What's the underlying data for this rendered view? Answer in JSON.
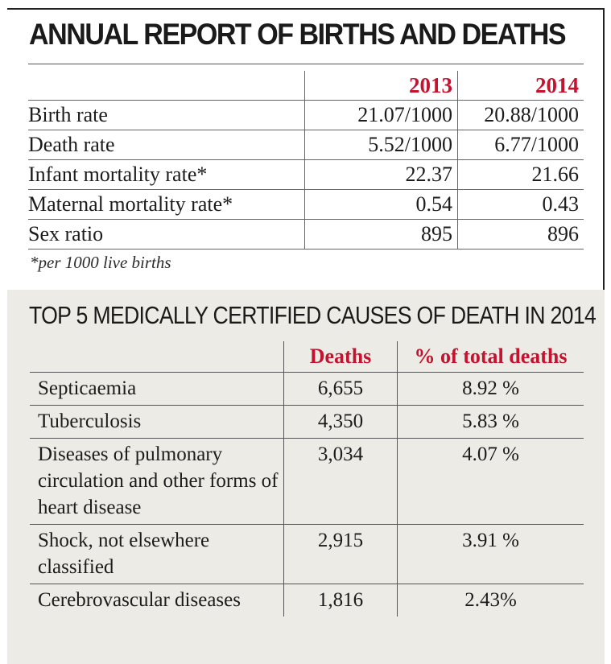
{
  "section1": {
    "title": "ANNUAL REPORT OF BIRTHS AND DEATHS",
    "columns": [
      "2013",
      "2014"
    ],
    "rows": [
      {
        "label": "Birth rate",
        "v2013": "21.07/1000",
        "v2014": "20.88/1000"
      },
      {
        "label": "Death rate",
        "v2013": "5.52/1000",
        "v2014": "6.77/1000"
      },
      {
        "label": "Infant mortality rate*",
        "v2013": "22.37",
        "v2014": "21.66"
      },
      {
        "label": "Maternal mortality rate*",
        "v2013": "0.54",
        "v2014": "0.43"
      },
      {
        "label": "Sex ratio",
        "v2013": "895",
        "v2014": "896"
      }
    ],
    "footnote": "*per 1000 live births"
  },
  "section2": {
    "title": "TOP 5 MEDICALLY CERTIFIED CAUSES OF DEATH IN 2014",
    "columns": [
      "Deaths",
      "% of total deaths"
    ],
    "rows": [
      {
        "label": "Septicaemia",
        "deaths": "6,655",
        "pct": "8.92 %"
      },
      {
        "label": "Tuberculosis",
        "deaths": "4,350",
        "pct": "5.83 %"
      },
      {
        "label": "Diseases of pulmonary circulation and other forms of heart disease",
        "deaths": "3,034",
        "pct": "4.07 %"
      },
      {
        "label": "Shock, not elsewhere classified",
        "deaths": "2,915",
        "pct": "3.91 %"
      },
      {
        "label": "Cerebrovascular diseases",
        "deaths": "1,816",
        "pct": "2.43%"
      }
    ]
  },
  "colors": {
    "accent": "#c4122f",
    "panel_bg": "#ecebe6"
  }
}
